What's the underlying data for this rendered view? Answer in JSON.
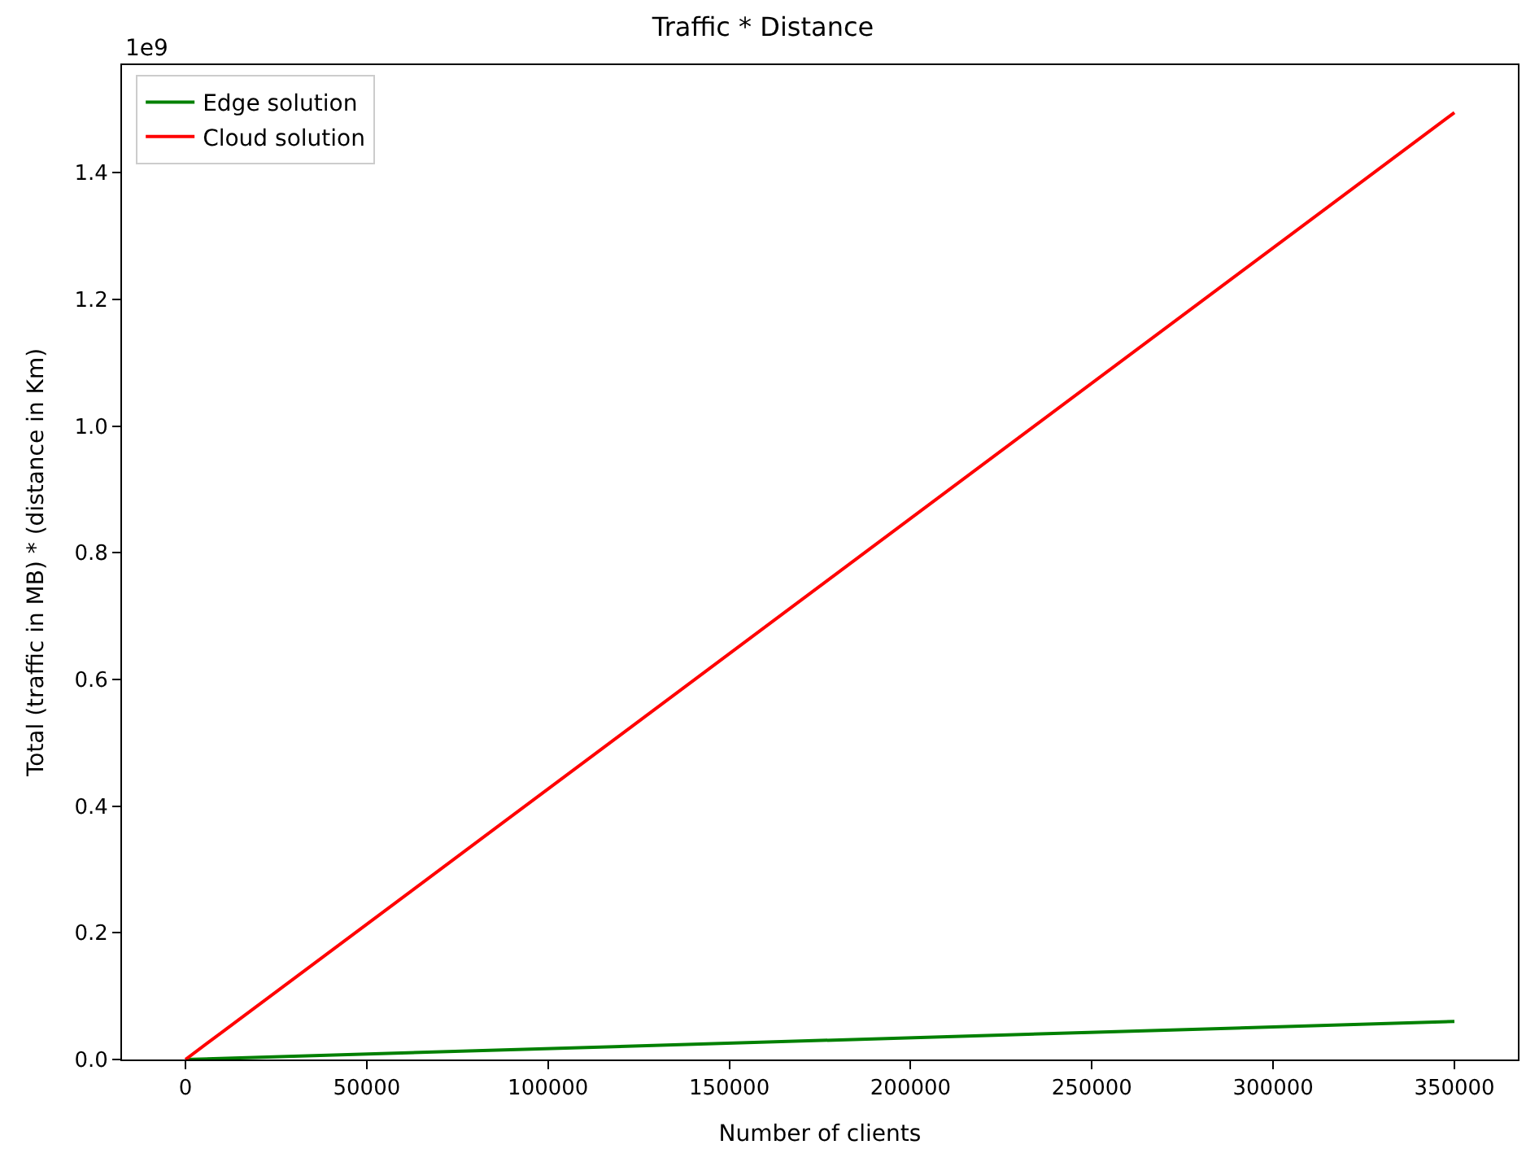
{
  "chart_data": {
    "type": "line",
    "title": "Traffic * Distance",
    "xlabel": "Number of clients",
    "ylabel": "Total (traffic in MB) * (distance in Km)",
    "annotations": [
      "1e9"
    ],
    "x": [
      0,
      350000
    ],
    "series": [
      {
        "name": "Edge solution",
        "color": "#008000",
        "values": [
          0,
          0.06
        ]
      },
      {
        "name": "Cloud solution",
        "color": "#ff0000",
        "values": [
          0,
          1.495
        ]
      }
    ],
    "xlim": [
      -17500,
      367500
    ],
    "xticks": [
      0,
      50000,
      100000,
      150000,
      200000,
      250000,
      300000,
      350000
    ],
    "ylim": [
      0,
      1.57
    ],
    "yticks": [
      {
        "value": 0,
        "label": "0.0"
      },
      0.2,
      0.4,
      0.6,
      0.8,
      {
        "value": 1,
        "label": "1.0"
      },
      1.2,
      1.4
    ],
    "legend": "top left",
    "line_style": "solid"
  }
}
